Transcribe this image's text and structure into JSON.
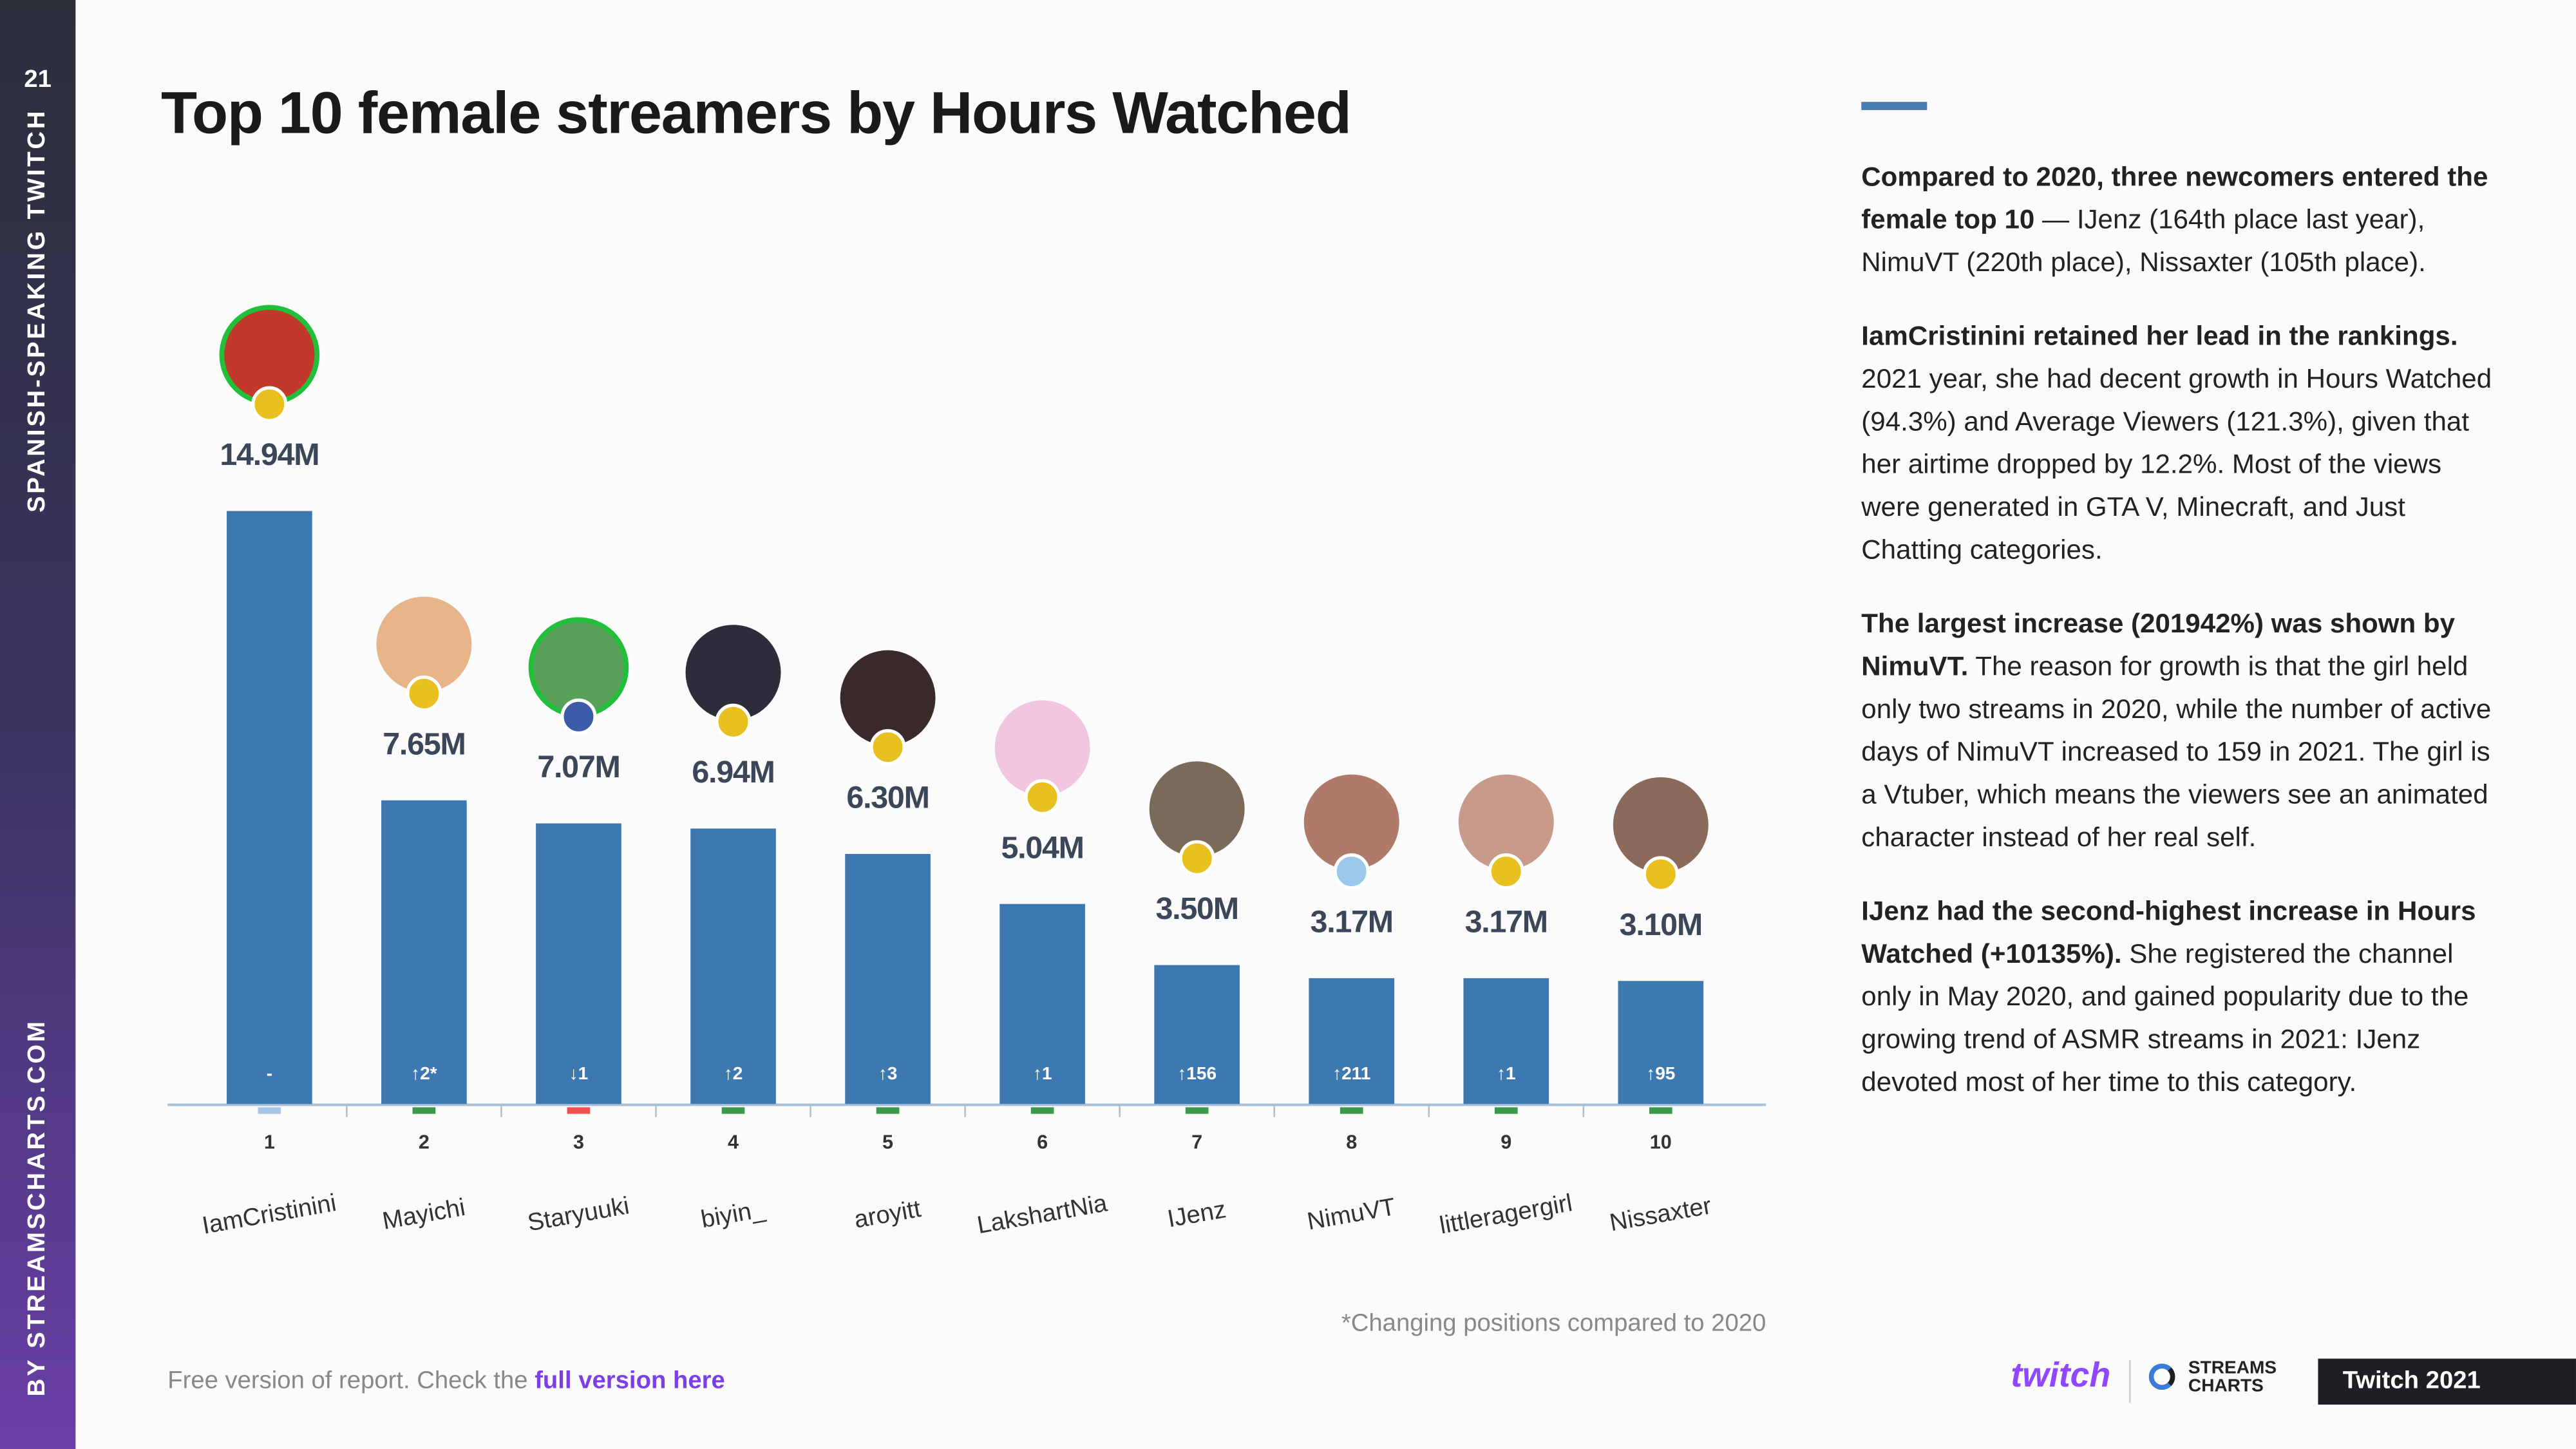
{
  "page_number": "21",
  "sidebar_top": "SPANISH-SPEAKING TWITCH",
  "sidebar_bottom": "BY STREAMSCHARTS.COM",
  "chart_data": {
    "type": "bar",
    "title": "Top 10 female streamers by Hours Watched",
    "categories": [
      "IamCristinini",
      "Mayichi",
      "Staryuuki",
      "biyin_",
      "aroyitt",
      "LakshartNia",
      "IJenz",
      "NimuVT",
      "littleragergirl",
      "Nissaxter"
    ],
    "values": [
      14.94,
      7.65,
      7.07,
      6.94,
      6.3,
      5.04,
      3.5,
      3.17,
      3.17,
      3.1
    ],
    "value_labels": [
      "14.94M",
      "7.65M",
      "7.07M",
      "6.94M",
      "6.30M",
      "5.04M",
      "3.50M",
      "3.17M",
      "3.17M",
      "3.10M"
    ],
    "ranks": [
      1,
      2,
      3,
      4,
      5,
      6,
      7,
      8,
      9,
      10
    ],
    "changes": [
      "-",
      "↑2*",
      "↓1",
      "↑2",
      "↑3",
      "↑1",
      "↑156",
      "↑211",
      "↑1",
      "↑95"
    ],
    "change_colors": [
      "#a9c6e4",
      "#3a9a4a",
      "#f05050",
      "#3a9a4a",
      "#3a9a4a",
      "#3a9a4a",
      "#3a9a4a",
      "#3a9a4a",
      "#3a9a4a",
      "#3a9a4a"
    ],
    "color": "#3d79b0",
    "ylim": [
      0,
      15
    ],
    "note": "*Changing positions compared to 2020"
  },
  "paragraphs": [
    {
      "bold": "Compared to 2020, three newcomers entered the female top 10",
      "text": " — IJenz (164th place last year), NimuVT (220th place), Nissaxter (105th place)."
    },
    {
      "bold": "IamCristinini retained her lead in the rankings.",
      "text": " 2021 year, she had decent growth in Hours Watched (94.3%) and Average Viewers (121.3%), given that her airtime dropped by 12.2%. Most of the views were generated in GTA V, Minecraft, and Just Chatting categories."
    },
    {
      "bold": "The largest increase (201942%) was shown by NimuVT.",
      "text": " The reason for growth is that the girl held only two streams in 2020, while the number of active days of NimuVT increased to 159 in 2021. The girl is a Vtuber, which means the viewers see an animated character instead of her real self."
    },
    {
      "bold": "IJenz had the second-highest increase in Hours Watched (+10135%).",
      "text": " She registered the channel only in May 2020, and gained popularity due to the growing trend of ASMR streams in 2021: IJenz devoted most of her time to this category."
    }
  ],
  "footer_text": "Free version of report. Check the ",
  "footer_link": "full version here",
  "logo_twitch": "twitch",
  "logo_streams": "STREAMS",
  "logo_charts": "CHARTS",
  "badge": "Twitch 2021"
}
